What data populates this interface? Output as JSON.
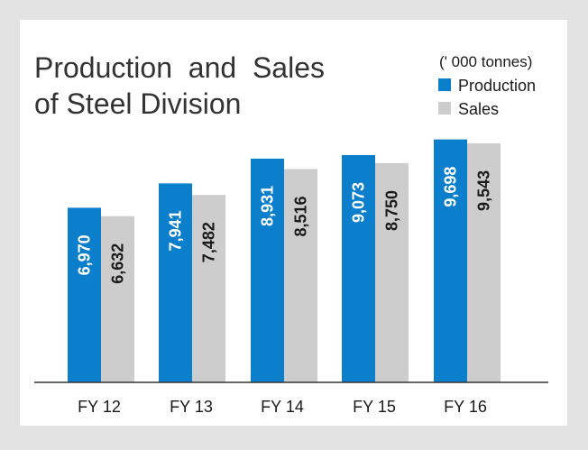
{
  "chart_data": {
    "type": "bar",
    "title": [
      "Production  and  Sales",
      "of Steel Division"
    ],
    "unit": "(' 000 tonnes)",
    "categories": [
      "FY 12",
      "FY 13",
      "FY 14",
      "FY 15",
      "FY 16"
    ],
    "series": [
      {
        "name": "Production",
        "values": [
          6970,
          7941,
          8931,
          9073,
          9698
        ],
        "labels": [
          "6,970",
          "7,941",
          "8,931",
          "9,073",
          "9,698"
        ],
        "color": "#0b7fcc",
        "label_color": "#ffffff"
      },
      {
        "name": "Sales",
        "values": [
          6632,
          7482,
          8516,
          8750,
          9543
        ],
        "labels": [
          "6,632",
          "7,482",
          "8,516",
          "8,750",
          "9,543"
        ],
        "color": "#cdcdcd",
        "label_color": "#1a1a1a"
      }
    ],
    "ylim": [
      0,
      10000
    ],
    "legend_position": "top-right",
    "grid": false,
    "background_color": "#e3e3e3",
    "panel_color": "#ffffff",
    "axis_color": "#333333"
  }
}
